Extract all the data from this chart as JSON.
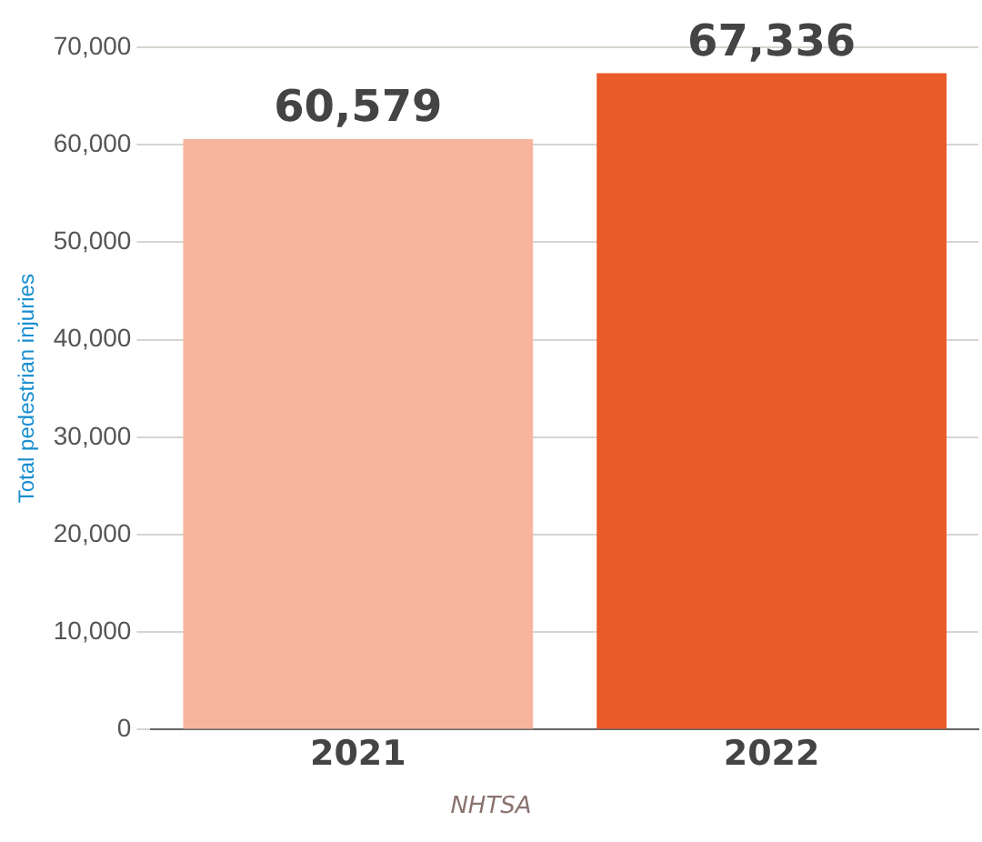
{
  "chart_data": {
    "type": "bar",
    "ylabel": "Total pedestrian injuries",
    "categories": [
      "2021",
      "2022"
    ],
    "values": [
      60579,
      67336
    ],
    "colors": [
      "#f7b5a0",
      "#eb5a29"
    ],
    "value_labels": [
      "60,579",
      "67,336"
    ],
    "ylim": [
      0,
      70000
    ],
    "yticks": [
      0,
      {
        "value": 10000,
        "label": "10,000"
      },
      {
        "value": 20000,
        "label": "20,000"
      },
      {
        "value": 30000,
        "label": "30,000"
      },
      {
        "value": 40000,
        "label": "40,000"
      },
      {
        "value": 50000,
        "label": "50,000"
      },
      {
        "value": 60000,
        "label": "60,000"
      },
      {
        "value": 70000,
        "label": "70,000"
      }
    ],
    "grid": "y",
    "legend": false,
    "annotations": [
      "NHTSA"
    ]
  }
}
